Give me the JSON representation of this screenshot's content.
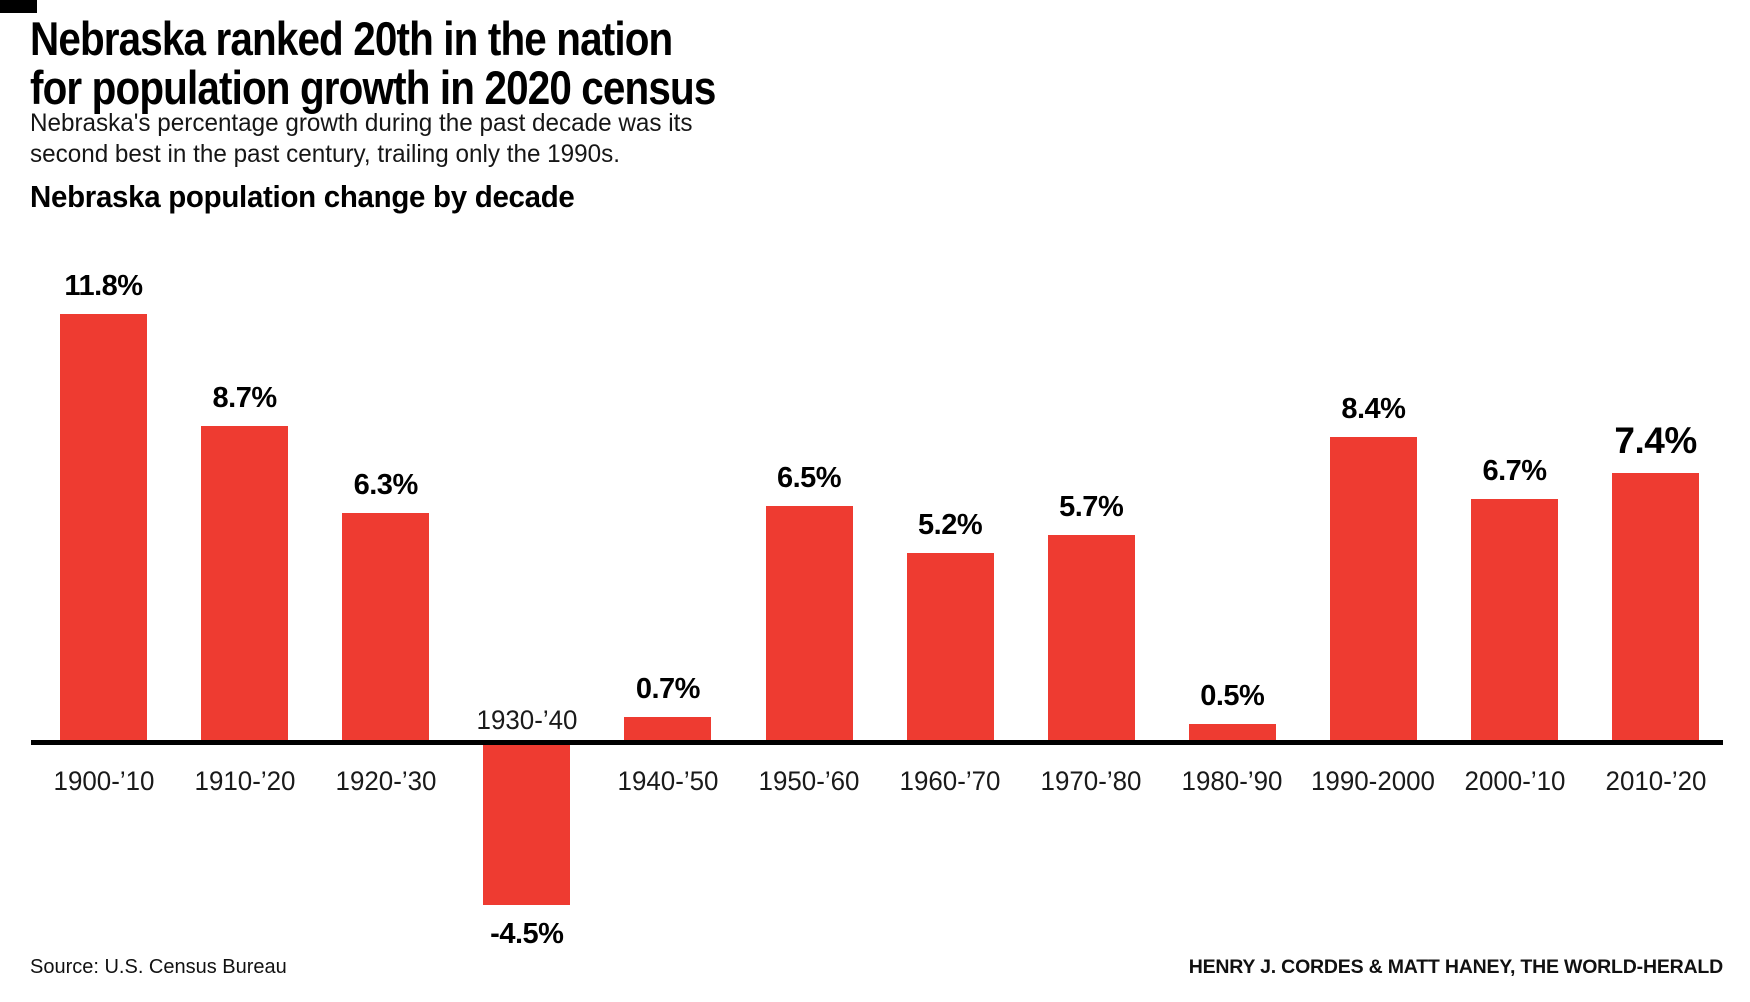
{
  "header": {
    "title_line1": "Nebraska ranked 20th in the nation",
    "title_line2": "for population growth in 2020 census",
    "deck_line1": "Nebraska's percentage growth during the past decade was its",
    "deck_line2": "second best in the past century, trailing only the 1990s."
  },
  "chart_data": {
    "type": "bar",
    "title": "Nebraska population change by decade",
    "categories": [
      "1900-’10",
      "1910-’20",
      "1920-’30",
      "1930-’40",
      "1940-’50",
      "1950-’60",
      "1960-’70",
      "1970-’80",
      "1980-’90",
      "1990-2000",
      "2000-’10",
      "2010-’20"
    ],
    "values": [
      11.8,
      8.7,
      6.3,
      -4.5,
      0.7,
      6.5,
      5.2,
      5.7,
      0.5,
      8.4,
      6.7,
      7.4
    ],
    "value_labels": [
      "11.8%",
      "8.7%",
      "6.3%",
      "-4.5%",
      "0.7%",
      "6.5%",
      "5.2%",
      "5.7%",
      "0.5%",
      "8.4%",
      "6.7%",
      "7.4%"
    ],
    "highlight_index": 11,
    "xlabel": "",
    "ylabel": "",
    "ylim": [
      -4.5,
      11.8
    ],
    "grid": false,
    "legend_position": "none",
    "bar_color": "#ee3b31",
    "axis_color": "#000000"
  },
  "footer": {
    "source": "Source: U.S. Census Bureau",
    "credit": "HENRY J. CORDES & MATT HANEY, THE WORLD-HERALD"
  }
}
